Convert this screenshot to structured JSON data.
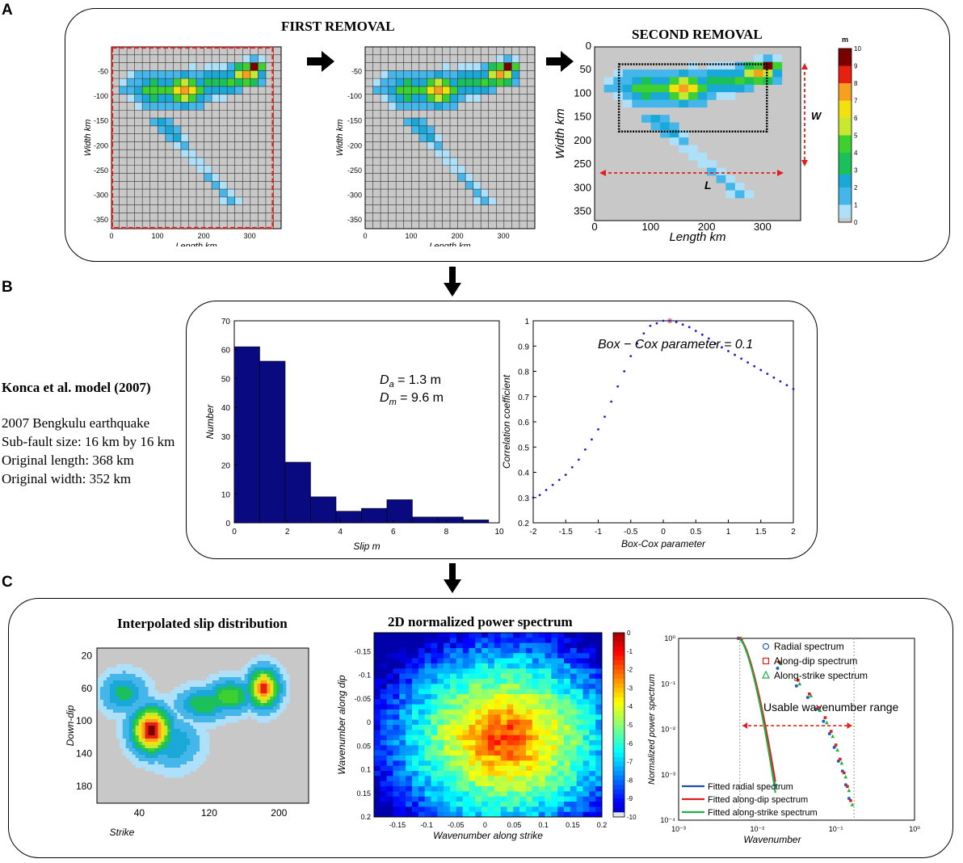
{
  "figure": {
    "panel_labels": [
      "A",
      "B",
      "C"
    ],
    "panelA": {
      "first_removal_title": "FIRST REMOVAL",
      "second_removal_title": "SECOND REMOVAL",
      "map1": {
        "xlabel": "Length  km",
        "ylabel": "Width  km",
        "xticks": [
          "0",
          "100",
          "200",
          "300"
        ],
        "yticks": [
          "-50",
          "-100",
          "-150",
          "-200",
          "-250",
          "-300",
          "-350"
        ]
      },
      "map2": {
        "xlabel": "Length  km",
        "ylabel": "Width  km",
        "xticks": [
          "0",
          "100",
          "200",
          "300"
        ],
        "yticks": [
          "-50",
          "-100",
          "-150",
          "-200",
          "-250",
          "-300",
          "-350"
        ]
      },
      "map3": {
        "xlabel": "Length  km",
        "ylabel": "Width  km",
        "xticks": [
          "0",
          "100",
          "200",
          "300"
        ],
        "yticks": [
          "0",
          "50",
          "100",
          "150",
          "200",
          "250",
          "300",
          "350"
        ],
        "label_w": "W",
        "label_l": "L"
      },
      "colorbar": {
        "unit": "m",
        "ticks": [
          "10",
          "9",
          "8",
          "7",
          "6",
          "5",
          "4",
          "3",
          "2",
          "1",
          "0"
        ]
      }
    },
    "panelB": {
      "model_title": "Konca et al. model (2007)",
      "info_lines": [
        "2007 Bengkulu earthquake",
        "Sub-fault size:  16 km by 16 km",
        "Original length: 368 km",
        "Original width:  352 km"
      ],
      "Da_text": "= 1.3 m",
      "Dm_text": "= 9.6 m",
      "Da_sym": "D",
      "Da_sub": "a",
      "Dm_sym": "D",
      "Dm_sub": "m",
      "boxcox_annotation": "Box − Cox parameter = 0.1"
    },
    "panelC": {
      "interp_title": "Interpolated slip distribution",
      "interp_xlabel": "Strike",
      "interp_ylabel": "Down-dip",
      "interp_xticks": [
        "40",
        "120",
        "200"
      ],
      "interp_yticks": [
        "20",
        "60",
        "100",
        "140",
        "180"
      ],
      "spectrum_title": "2D normalized power spectrum",
      "spectrum_xlabel": "Wavenumber along strike",
      "spectrum_ylabel": "Wavenumber along dip",
      "spectrum_xticks": [
        "-0.15",
        "-0.1",
        "-0.05",
        "0",
        "0.05",
        "0.1",
        "0.15",
        "0.2"
      ],
      "spectrum_yticks": [
        "-0.15",
        "-0.1",
        "-0.05",
        "0",
        "0.05",
        "0.1",
        "0.15",
        "0.2"
      ],
      "spectrum_cbar_ticks": [
        "0",
        "-1",
        "-2",
        "-3",
        "-4",
        "-5",
        "-6",
        "-7",
        "-8",
        "-9",
        "-10"
      ],
      "usable_range_label": "Usable  wavenumber  range"
    }
  },
  "chart_data": [
    {
      "type": "bar",
      "title": "",
      "xlabel": "Slip m",
      "ylabel": "Number",
      "bin_edges": [
        0,
        0.96,
        1.92,
        2.88,
        3.84,
        4.8,
        5.76,
        6.72,
        7.68,
        8.64,
        9.6
      ],
      "values": [
        61,
        56,
        21,
        9,
        4,
        5,
        8,
        2,
        2,
        1
      ],
      "xlim": [
        0,
        10
      ],
      "ylim": [
        0,
        70
      ],
      "xticks": [
        "0",
        "2",
        "4",
        "6",
        "8",
        "10"
      ],
      "yticks": [
        "0",
        "10",
        "20",
        "30",
        "40",
        "50",
        "60",
        "70"
      ],
      "color": "#0a0a80"
    },
    {
      "type": "scatter",
      "title": "",
      "xlabel": "Box-Cox parameter",
      "ylabel": "Correlation coefficient",
      "x": [
        -2,
        -1.9,
        -1.8,
        -1.7,
        -1.6,
        -1.5,
        -1.4,
        -1.3,
        -1.2,
        -1.1,
        -1.0,
        -0.9,
        -0.8,
        -0.7,
        -0.6,
        -0.5,
        -0.4,
        -0.3,
        -0.2,
        -0.1,
        0,
        0.1,
        0.2,
        0.3,
        0.4,
        0.5,
        0.6,
        0.7,
        0.8,
        0.9,
        1.0,
        1.1,
        1.2,
        1.3,
        1.4,
        1.5,
        1.6,
        1.7,
        1.8,
        1.9,
        2.0
      ],
      "y": [
        0.3,
        0.31,
        0.33,
        0.35,
        0.37,
        0.39,
        0.42,
        0.45,
        0.49,
        0.53,
        0.57,
        0.62,
        0.68,
        0.74,
        0.8,
        0.86,
        0.91,
        0.95,
        0.98,
        0.99,
        1.0,
        1.0,
        0.995,
        0.985,
        0.975,
        0.96,
        0.945,
        0.93,
        0.91,
        0.895,
        0.88,
        0.865,
        0.85,
        0.835,
        0.82,
        0.805,
        0.79,
        0.775,
        0.76,
        0.745,
        0.73
      ],
      "xlim": [
        -2,
        2
      ],
      "ylim": [
        0.2,
        1
      ],
      "xticks": [
        "-2",
        "-1.5",
        "-1",
        "-0.5",
        "0",
        "0.5",
        "1",
        "1.5",
        "2"
      ],
      "yticks": [
        "0.2",
        "0.3",
        "0.4",
        "0.5",
        "0.6",
        "0.7",
        "0.8",
        "0.9",
        "1"
      ],
      "color": "#1a1ad0"
    },
    {
      "type": "line",
      "title": "",
      "xlabel": "Wavenumber",
      "ylabel": "Normalized power spectrum",
      "xscale": "log",
      "yscale": "log",
      "xlim": [
        0.001,
        1
      ],
      "ylim": [
        0.0001,
        1
      ],
      "xticks": [
        "10⁻³",
        "10⁻²",
        "10⁻¹",
        "10⁰"
      ],
      "yticks": [
        "10⁰",
        "10⁻¹",
        "10⁻²",
        "10⁻³",
        "10⁻⁴"
      ],
      "series": [
        {
          "name": "Radial spectrum",
          "kind": "points",
          "marker": "circle",
          "color": "#2060c0",
          "x": [
            0.006,
            0.019,
            0.033,
            0.046,
            0.06,
            0.073,
            0.087,
            0.1,
            0.113,
            0.127,
            0.14,
            0.154
          ],
          "y": [
            1.0,
            0.22,
            0.09,
            0.05,
            0.028,
            0.015,
            0.008,
            0.004,
            0.002,
            0.0012,
            0.0006,
            0.0003
          ]
        },
        {
          "name": "Along-dip spectrum",
          "kind": "points",
          "marker": "square",
          "color": "#e02020",
          "x": [
            0.006,
            0.019,
            0.033,
            0.046,
            0.06,
            0.073,
            0.087,
            0.1,
            0.113,
            0.127,
            0.14,
            0.154
          ],
          "y": [
            1.0,
            0.3,
            0.12,
            0.06,
            0.03,
            0.018,
            0.009,
            0.0045,
            0.0022,
            0.0011,
            0.00055,
            0.00027
          ]
        },
        {
          "name": "Along-strike spectrum",
          "kind": "points",
          "marker": "triangle",
          "color": "#20b040",
          "x": [
            0.006,
            0.019,
            0.033,
            0.046,
            0.06,
            0.073,
            0.087,
            0.1,
            0.113,
            0.127,
            0.14,
            0.154
          ],
          "y": [
            1.0,
            0.28,
            0.1,
            0.055,
            0.026,
            0.014,
            0.007,
            0.0035,
            0.0018,
            0.0009,
            0.00045,
            0.00022
          ]
        },
        {
          "name": "Fitted radial spectrum",
          "kind": "line",
          "color": "#1f4fa8",
          "x": [
            0.006,
            0.017
          ],
          "y": [
            1.0,
            0.0005
          ]
        },
        {
          "name": "Fitted along-dip spectrum",
          "kind": "line",
          "color": "#e02020",
          "x": [
            0.006,
            0.017
          ],
          "y": [
            1.0,
            0.0007
          ]
        },
        {
          "name": "Fitted along-strike spectrum",
          "kind": "line",
          "color": "#20b040",
          "x": [
            0.006,
            0.017
          ],
          "y": [
            0.95,
            0.0004
          ]
        }
      ]
    }
  ]
}
